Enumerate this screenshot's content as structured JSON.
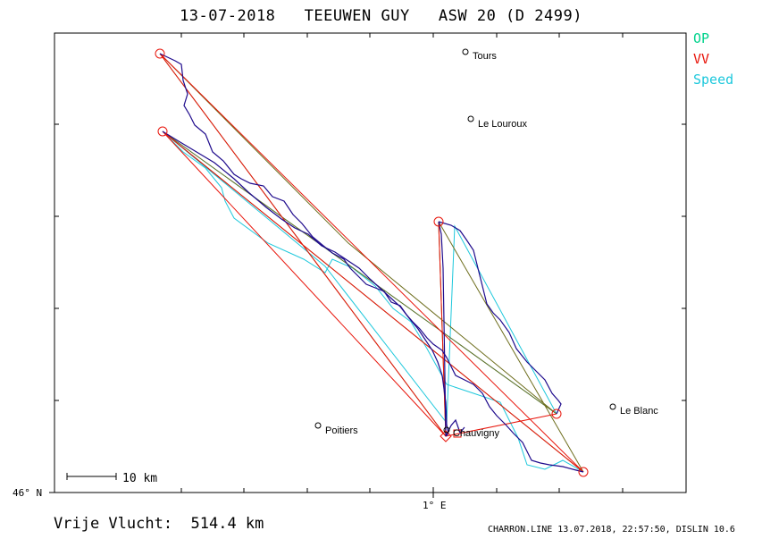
{
  "title": "13-07-2018   TEEUWEN GUY   ASW 20 (D 2499)",
  "legend": [
    {
      "label": "OP",
      "color": "#00d28c"
    },
    {
      "label": "VV",
      "color": "#e8140a"
    },
    {
      "label": "Speed",
      "color": "#1ec8dc"
    }
  ],
  "axes": {
    "y_label": "46° N",
    "x_label": "1° E"
  },
  "scale_bar": "10 km",
  "places": [
    {
      "name": "Tours"
    },
    {
      "name": "Le Louroux"
    },
    {
      "name": "Le Blanc"
    },
    {
      "name": "Poitiers"
    },
    {
      "name": "Chauvigny"
    }
  ],
  "footer": {
    "distance": "Vrije Vlucht:  514.4 km",
    "program": "CHARRON.LINE 13.07.2018, 22:57:50, DISLIN 10.6"
  },
  "colors": {
    "track": "#1e0a8c",
    "op": "#6e6e1e",
    "vv": "#e8140a",
    "speed": "#1ec8dc",
    "frame": "#000000"
  }
}
